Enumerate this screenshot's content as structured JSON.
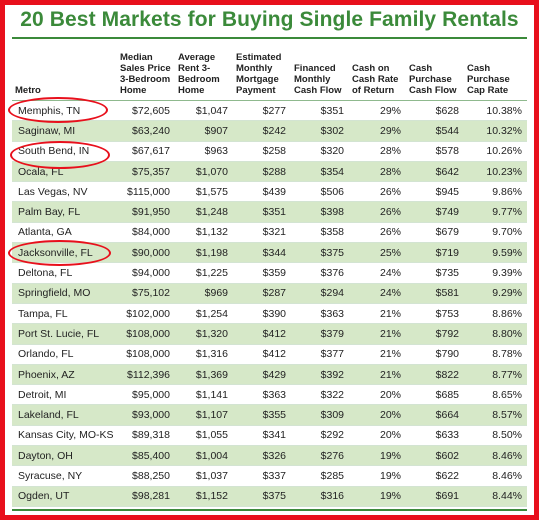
{
  "title": "20 Best Markets for Buying Single Family Rentals",
  "columns": [
    "Metro",
    "Median Sales Price 3-Bedroom Home",
    "Average Rent 3-Bedroom Home",
    "Estimated Monthly Mortgage Payment",
    "Financed Monthly Cash Flow",
    "Cash on Cash Rate of Return",
    "Cash Purchase Cash Flow",
    "Cash Purchase Cap Rate"
  ],
  "rows": [
    [
      "Memphis, TN",
      "$72,605",
      "$1,047",
      "$277",
      "$351",
      "29%",
      "$628",
      "10.38%"
    ],
    [
      "Saginaw, MI",
      "$63,240",
      "$907",
      "$242",
      "$302",
      "29%",
      "$544",
      "10.32%"
    ],
    [
      "South Bend, IN",
      "$67,617",
      "$963",
      "$258",
      "$320",
      "28%",
      "$578",
      "10.26%"
    ],
    [
      "Ocala, FL",
      "$75,357",
      "$1,070",
      "$288",
      "$354",
      "28%",
      "$642",
      "10.23%"
    ],
    [
      "Las Vegas, NV",
      "$115,000",
      "$1,575",
      "$439",
      "$506",
      "26%",
      "$945",
      "9.86%"
    ],
    [
      "Palm Bay, FL",
      "$91,950",
      "$1,248",
      "$351",
      "$398",
      "26%",
      "$749",
      "9.77%"
    ],
    [
      "Atlanta, GA",
      "$84,000",
      "$1,132",
      "$321",
      "$358",
      "26%",
      "$679",
      "9.70%"
    ],
    [
      "Jacksonville, FL",
      "$90,000",
      "$1,198",
      "$344",
      "$375",
      "25%",
      "$719",
      "9.59%"
    ],
    [
      "Deltona, FL",
      "$94,000",
      "$1,225",
      "$359",
      "$376",
      "24%",
      "$735",
      "9.39%"
    ],
    [
      "Springfield, MO",
      "$75,102",
      "$969",
      "$287",
      "$294",
      "24%",
      "$581",
      "9.29%"
    ],
    [
      "Tampa, FL",
      "$102,000",
      "$1,254",
      "$390",
      "$363",
      "21%",
      "$753",
      "8.86%"
    ],
    [
      "Port St. Lucie, FL",
      "$108,000",
      "$1,320",
      "$412",
      "$379",
      "21%",
      "$792",
      "8.80%"
    ],
    [
      "Orlando, FL",
      "$108,000",
      "$1,316",
      "$412",
      "$377",
      "21%",
      "$790",
      "8.78%"
    ],
    [
      "Phoenix, AZ",
      "$112,396",
      "$1,369",
      "$429",
      "$392",
      "21%",
      "$822",
      "8.77%"
    ],
    [
      "Detroit, MI",
      "$95,000",
      "$1,141",
      "$363",
      "$322",
      "20%",
      "$685",
      "8.65%"
    ],
    [
      "Lakeland, FL",
      "$93,000",
      "$1,107",
      "$355",
      "$309",
      "20%",
      "$664",
      "8.57%"
    ],
    [
      "Kansas City, MO-KS",
      "$89,318",
      "$1,055",
      "$341",
      "$292",
      "20%",
      "$633",
      "8.50%"
    ],
    [
      "Dayton, OH",
      "$85,400",
      "$1,004",
      "$326",
      "$276",
      "19%",
      "$602",
      "8.46%"
    ],
    [
      "Syracuse, NY",
      "$88,250",
      "$1,037",
      "$337",
      "$285",
      "19%",
      "$622",
      "8.46%"
    ],
    [
      "Ogden, UT",
      "$98,281",
      "$1,152",
      "$375",
      "$316",
      "19%",
      "$691",
      "8.44%"
    ]
  ],
  "circled_rows": [
    0,
    2,
    7
  ],
  "colors": {
    "title": "#3b8a3a",
    "alt_row": "#d6e8c8",
    "border": "#e8101c"
  }
}
